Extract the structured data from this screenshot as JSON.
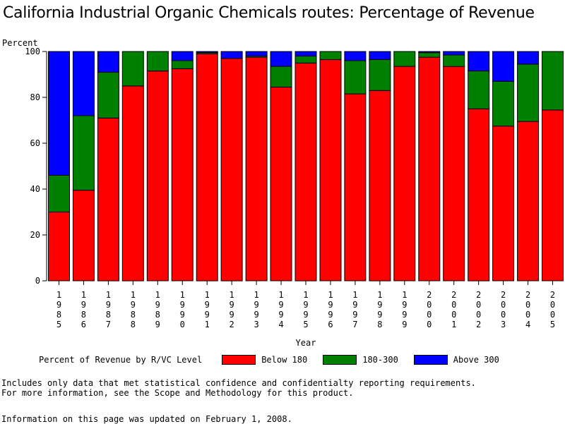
{
  "title": "California Industrial Organic Chemicals routes: Percentage of Revenue",
  "legend": {
    "lead": "Percent of Revenue by R/VC Level",
    "items": [
      {
        "label": "Below 180",
        "color": "#ff0000"
      },
      {
        "label": "180-300",
        "color": "#008000"
      },
      {
        "label": "Above 300",
        "color": "#0000ff"
      }
    ]
  },
  "notes": [
    "Includes only data that met statistical confidence and confidentialty reporting requirements.",
    "For more information, see the Scope and Methodology for this product."
  ],
  "updated": "Information on this page was updated on February 1, 2008.",
  "chart_data": {
    "type": "bar",
    "stacked": true,
    "xlabel": "Year",
    "ylabel": "Percent",
    "ylim": [
      0,
      100
    ],
    "yticks": [
      0,
      20,
      40,
      60,
      80,
      100
    ],
    "categories": [
      "1985",
      "1986",
      "1987",
      "1988",
      "1989",
      "1990",
      "1991",
      "1992",
      "1993",
      "1994",
      "1995",
      "1996",
      "1997",
      "1998",
      "1999",
      "2000",
      "2001",
      "2002",
      "2003",
      "2004",
      "2005"
    ],
    "series": [
      {
        "name": "Below 180",
        "color": "#ff0000",
        "values": [
          30,
          39.5,
          71,
          85,
          91.5,
          92.5,
          99,
          97,
          97.5,
          84.5,
          95,
          96.5,
          81.5,
          83,
          93.5,
          97.5,
          93.5,
          75,
          67.5,
          69.5,
          74.5
        ]
      },
      {
        "name": "180-300",
        "color": "#008000",
        "values": [
          16,
          32.5,
          20,
          15,
          8.5,
          3.5,
          0.5,
          0,
          0.5,
          9,
          3,
          3.5,
          14.5,
          13.5,
          6.5,
          2,
          5,
          16.5,
          19.5,
          25,
          25.5
        ]
      },
      {
        "name": "Above 300",
        "color": "#0000ff",
        "values": [
          54,
          28,
          9,
          0,
          0,
          4,
          0.5,
          3,
          2,
          6.5,
          2,
          0,
          4,
          3.5,
          0,
          0.5,
          1.5,
          8.5,
          13,
          5.5,
          0
        ]
      }
    ]
  }
}
